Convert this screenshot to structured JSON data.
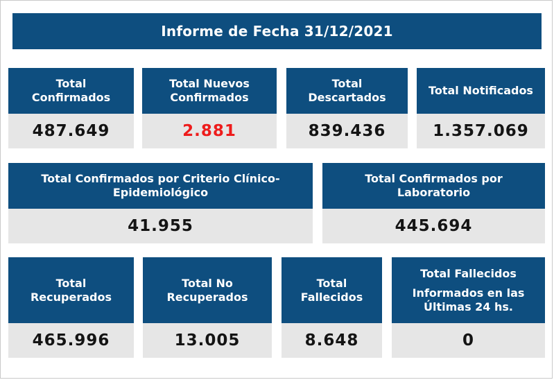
{
  "report": {
    "title": "Informe de Fecha 31/12/2021"
  },
  "row1": [
    {
      "label": "Total\nConfirmados",
      "value": "487.649"
    },
    {
      "label": "Total Nuevos\nConfirmados",
      "value": "2.881",
      "highlight": "#ee1c1c"
    },
    {
      "label": "Total\nDescartados",
      "value": "839.436"
    },
    {
      "label": "Total Notificados",
      "value": "1.357.069"
    }
  ],
  "row2": [
    {
      "label": "Total Confirmados por Criterio Clínico-\nEpidemiológico",
      "value": "41.955"
    },
    {
      "label": "Total Confirmados por\nLaboratorio",
      "value": "445.694"
    }
  ],
  "row3": [
    {
      "label": "Total\nRecuperados",
      "value": "465.996"
    },
    {
      "label": "Total No\nRecuperados",
      "value": "13.005"
    },
    {
      "label": "Total\nFallecidos",
      "value": "8.648"
    },
    {
      "label": "Total Fallecidos",
      "sublabel": "Informados en las\nÚltimas 24 hs.",
      "value": "0"
    }
  ],
  "colors": {
    "header_bg": "#0e4e7f",
    "value_bg": "#e6e6e6",
    "highlight": "#ee1c1c"
  }
}
